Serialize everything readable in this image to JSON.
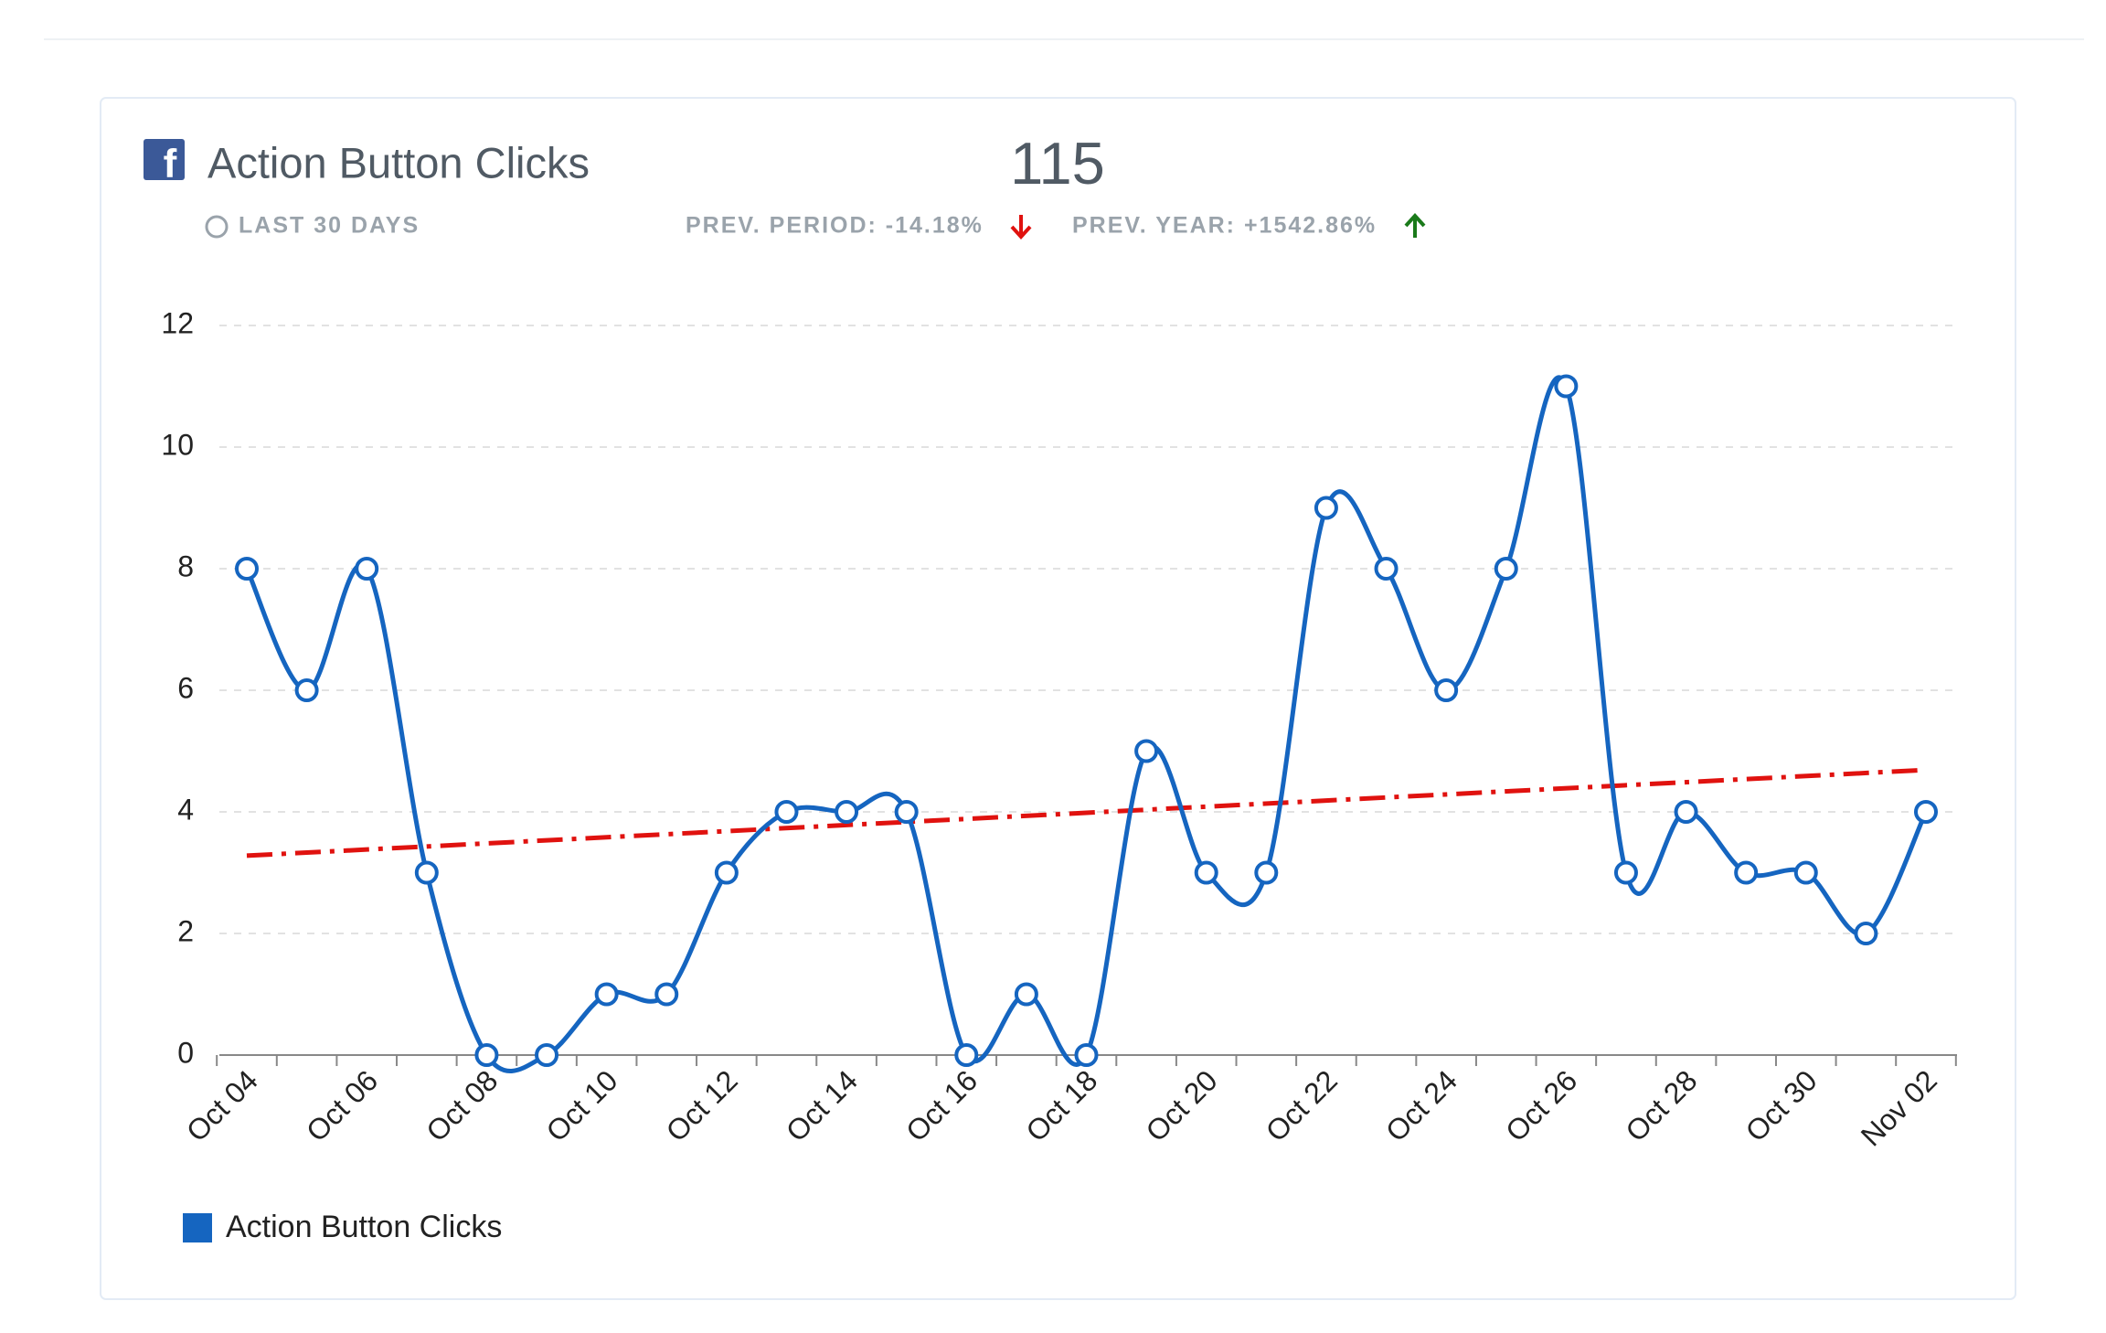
{
  "header": {
    "title": "Action Button Clicks",
    "total": "115",
    "period": "LAST 30 DAYS",
    "prev_period": "PREV. PERIOD: -14.18%",
    "prev_year": "PREV. YEAR: +1542.86%"
  },
  "chart_data": {
    "type": "line",
    "categories": [
      "Oct 04",
      null,
      "Oct 06",
      null,
      "Oct 08",
      null,
      "Oct 10",
      null,
      "Oct 12",
      null,
      "Oct 14",
      null,
      "Oct 16",
      null,
      "Oct 18",
      null,
      "Oct 20",
      null,
      "Oct 22",
      null,
      "Oct 24",
      null,
      "Oct 26",
      null,
      "Oct 28",
      null,
      "Oct 30",
      null,
      "Nov 02"
    ],
    "series": [
      {
        "name": "Action Button Clicks",
        "color": "#1565c0",
        "values": [
          8,
          6,
          8,
          3,
          0,
          0,
          1,
          1,
          3,
          4,
          4,
          4,
          0,
          1,
          0,
          5,
          3,
          3,
          9,
          8,
          6,
          8,
          11,
          3,
          4,
          3,
          3,
          2,
          4
        ]
      }
    ],
    "trendline": {
      "color": "#e0120f",
      "values": [
        3.28,
        4.69
      ]
    },
    "ylim": [
      0,
      12
    ],
    "yticks": [
      0,
      2,
      4,
      6,
      8,
      10,
      12
    ],
    "grid": true
  }
}
